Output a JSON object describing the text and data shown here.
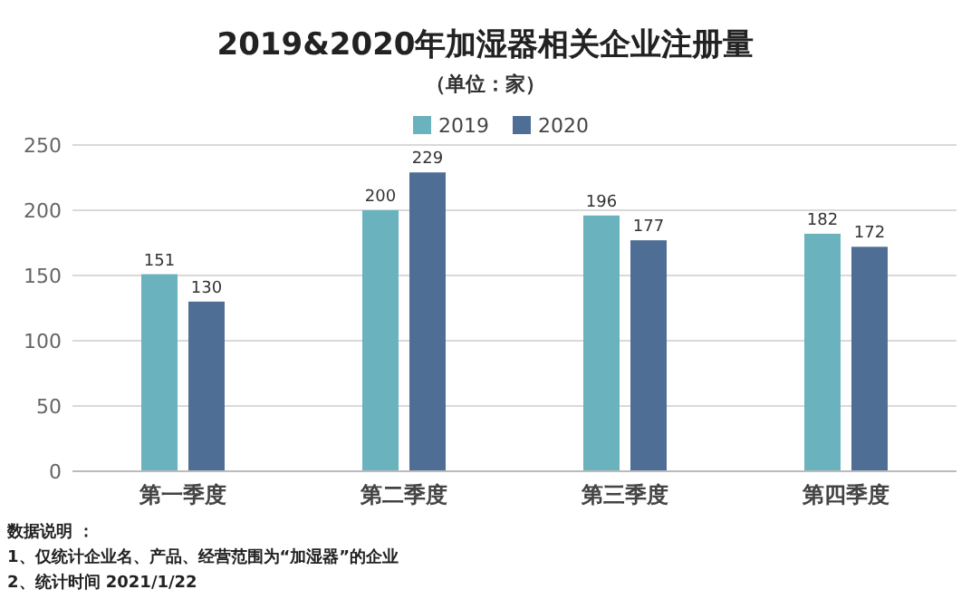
{
  "chart_data": {
    "type": "bar",
    "title": "2019&2020年加湿器相关企业注册量",
    "subtitle": "（单位：家）",
    "categories": [
      "第一季度",
      "第二季度",
      "第三季度",
      "第四季度"
    ],
    "series": [
      {
        "name": "2019",
        "color": "#6ab2bd",
        "values": [
          151,
          200,
          196,
          182
        ]
      },
      {
        "name": "2020",
        "color": "#4f6e95",
        "values": [
          130,
          229,
          177,
          172
        ]
      }
    ],
    "ylim": [
      0,
      250
    ],
    "yticks": [
      0,
      50,
      100,
      150,
      200,
      250
    ],
    "grid": "y",
    "legend": "top",
    "data_labels": true,
    "annotations": [
      "数据说明 ：",
      "1、仅统计企业名、产品、经营范围为“加湿器”的企业",
      "2、统计时间 2021/1/22"
    ]
  }
}
